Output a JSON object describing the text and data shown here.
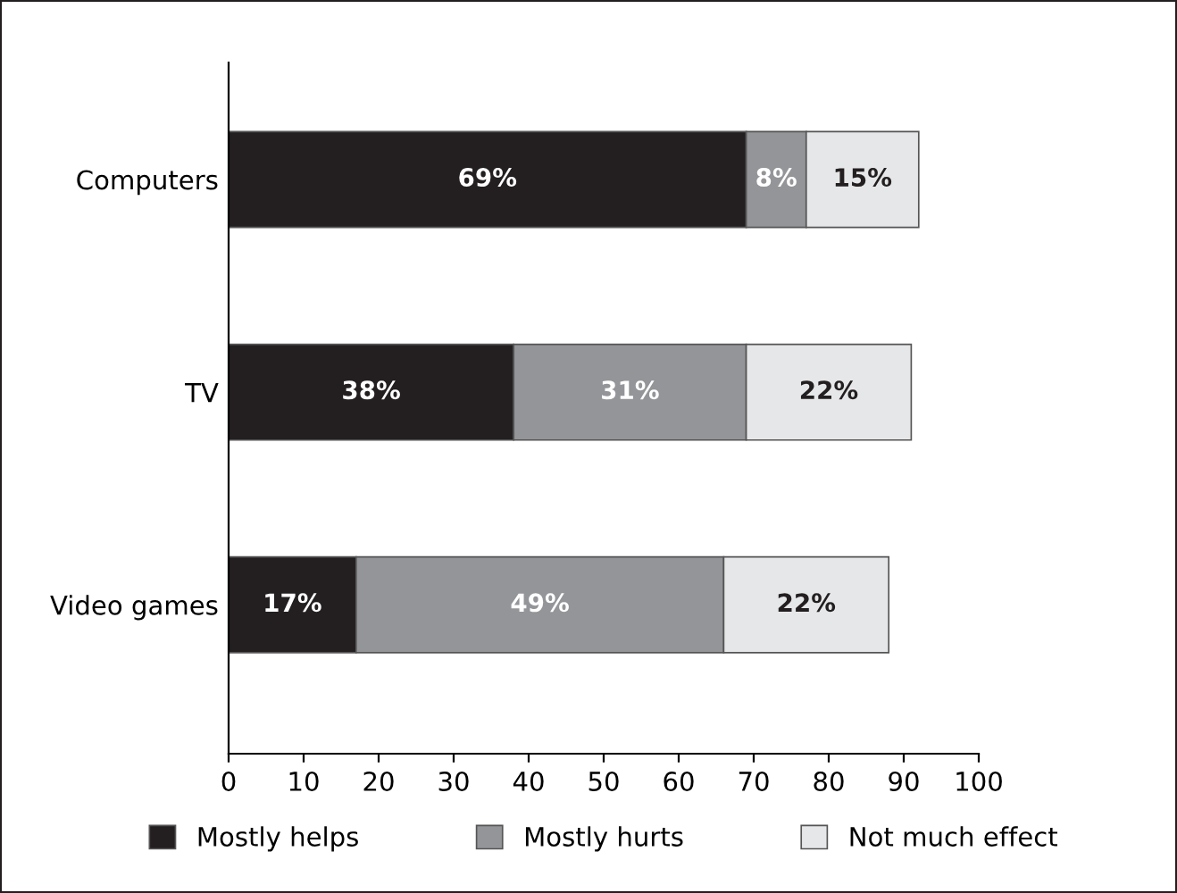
{
  "chart_data": {
    "type": "bar",
    "orientation": "horizontal",
    "stacked": true,
    "categories": [
      "Computers",
      "TV",
      "Video games"
    ],
    "series": [
      {
        "name": "Mostly helps",
        "color": "#231f20",
        "values": [
          69,
          38,
          17
        ],
        "value_labels": [
          "69%",
          "38%",
          "17%"
        ]
      },
      {
        "name": "Mostly hurts",
        "color": "#939598",
        "values": [
          8,
          31,
          49
        ],
        "value_labels": [
          "8%",
          "31%",
          "49%"
        ]
      },
      {
        "name": "Not much effect",
        "color": "#e6e7e8",
        "values": [
          15,
          22,
          22
        ],
        "value_labels": [
          "15%",
          "22%",
          "22%"
        ]
      }
    ],
    "xlim": [
      0,
      100
    ],
    "xticks": [
      0,
      10,
      20,
      30,
      40,
      50,
      60,
      70,
      80,
      90,
      100
    ],
    "legend": "bottom",
    "grid": false
  }
}
